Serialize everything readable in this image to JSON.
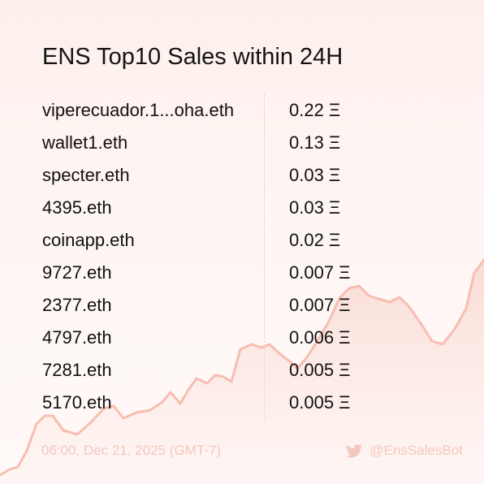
{
  "title": "ENS Top10 Sales within 24H",
  "sales": [
    {
      "name": "viperecuador.1...oha.eth",
      "price": "0.22 Ξ"
    },
    {
      "name": "wallet1.eth",
      "price": "0.13 Ξ"
    },
    {
      "name": "specter.eth",
      "price": "0.03 Ξ"
    },
    {
      "name": "4395.eth",
      "price": "0.03 Ξ"
    },
    {
      "name": "coinapp.eth",
      "price": "0.02 Ξ"
    },
    {
      "name": "9727.eth",
      "price": "0.007 Ξ"
    },
    {
      "name": "2377.eth",
      "price": "0.007 Ξ"
    },
    {
      "name": "4797.eth",
      "price": "0.006 Ξ"
    },
    {
      "name": "7281.eth",
      "price": "0.005 Ξ"
    },
    {
      "name": "5170.eth",
      "price": "0.005 Ξ"
    }
  ],
  "footer": {
    "timestamp": "06:00, Dec 21, 2025 (GMT-7)",
    "handle": "@EnsSalesBot",
    "icon": "twitter-bird-icon"
  },
  "colors": {
    "background": "#fdf2ef",
    "accent_line": "#f8bdb0",
    "accent_fill": "#f9d6ce",
    "text": "#111111",
    "footer_text": "#f4c7bd"
  }
}
